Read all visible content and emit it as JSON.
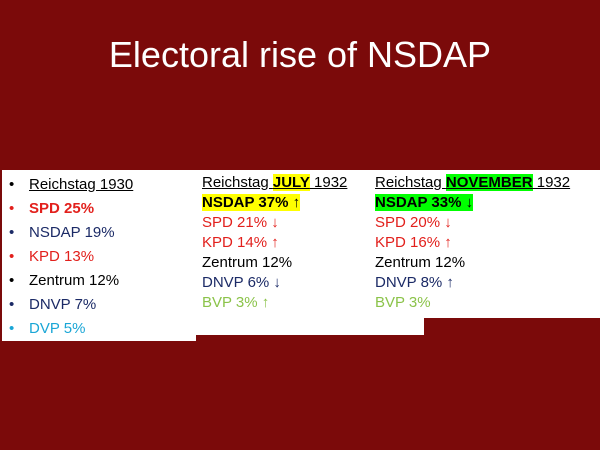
{
  "title": "Electoral rise of NSDAP",
  "colors": {
    "background": "#7b0a0a",
    "red": "#e2201c",
    "navy": "#1b2a66",
    "green": "#8bc34a",
    "cyan": "#1aa6d6"
  },
  "col_1930": {
    "heading": "Reichstag 1930",
    "items": [
      {
        "text": "SPD 25%"
      },
      {
        "text": "NSDAP 19%"
      },
      {
        "text": "KPD 13%"
      },
      {
        "text": "Zentrum 12%"
      },
      {
        "text": "DNVP 7%"
      },
      {
        "text": "DVP 5%"
      }
    ]
  },
  "col_july": {
    "heading_pre": "Reichstag ",
    "heading_highlight": "JULY",
    "heading_post": " 1932",
    "items": [
      {
        "text": "NSDAP 37% ↑"
      },
      {
        "text": "SPD 21% ↓"
      },
      {
        "text": "KPD 14% ↑"
      },
      {
        "text": "Zentrum 12%"
      },
      {
        "text": "DNVP 6% ↓"
      },
      {
        "text": "BVP 3% ↑"
      }
    ]
  },
  "col_nov": {
    "heading_pre": "Reichstag ",
    "heading_highlight": "NOVEMBER",
    "heading_post": " 1932",
    "items": [
      {
        "text": "NSDAP 33% ↓"
      },
      {
        "text": "SPD 20% ↓"
      },
      {
        "text": "KPD 16% ↑"
      },
      {
        "text": "Zentrum 12%"
      },
      {
        "text": "DNVP 8% ↑"
      },
      {
        "text": "BVP 3%"
      }
    ]
  }
}
